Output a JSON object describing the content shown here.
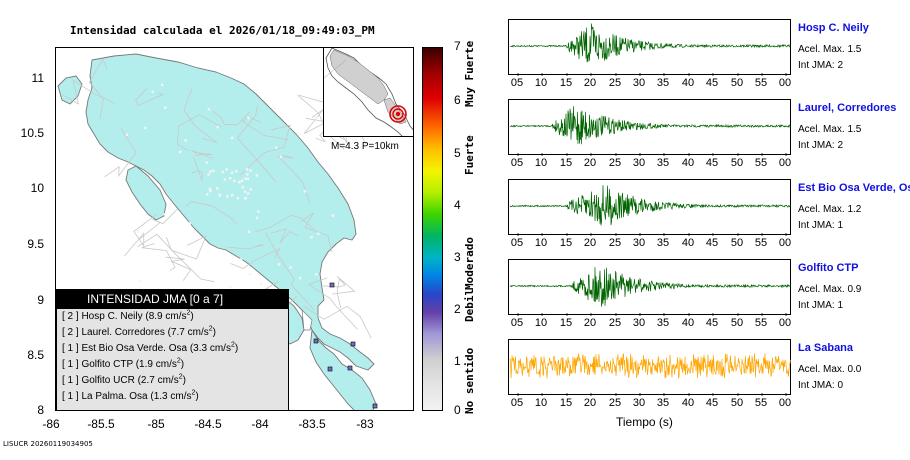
{
  "map": {
    "title": "Intensidad calculada el 2026/01/18_09:49:03_PM",
    "yticks": [
      "11",
      "10.5",
      "10",
      "9.5",
      "9",
      "8.5",
      "8"
    ],
    "xticks": [
      "-86",
      "-85.5",
      "-85",
      "-84.5",
      "-84",
      "-83.5",
      "-83"
    ],
    "magnitude_label": "M=4.3 P=10km",
    "colors": {
      "land": "#b4eeec",
      "coast": "#777777",
      "roads": "#c8c8c8",
      "ocean": "#ffffff"
    }
  },
  "legend": {
    "title": "INTENSIDAD JMA [0 a 7]",
    "rows": [
      {
        "code": "[ 2 ]",
        "text": "Hosp C. Neily (8.9 cm/s",
        "sup": "2",
        "close": ")"
      },
      {
        "code": "[ 2 ]",
        "text": "Laurel. Corredores (7.7 cm/s",
        "sup": "2",
        "close": ")"
      },
      {
        "code": "[ 1 ]",
        "text": "Est Bio Osa Verde. Osa (3.3 cm/s",
        "sup": "2",
        "close": ")"
      },
      {
        "code": "[ 1 ]",
        "text": "Golfito CTP (1.9 cm/s",
        "sup": "2",
        "close": ")"
      },
      {
        "code": "[ 1 ]",
        "text": "Golfito UCR (2.7 cm/s",
        "sup": "2",
        "close": ")"
      },
      {
        "code": "[ 1 ]",
        "text": "La Palma. Osa (1.3 cm/s",
        "sup": "2",
        "close": ")"
      }
    ]
  },
  "colorbar": {
    "ticks": [
      "7",
      "6",
      "5",
      "4",
      "3",
      "2",
      "1",
      "0"
    ],
    "labels": [
      "Muy Fuerte",
      "Fuerte",
      "Moderado",
      "Debil",
      "No sentido"
    ]
  },
  "footer": "LISUCR 20260119034905",
  "traces": {
    "time_ticks": [
      "05",
      "10",
      "15",
      "20",
      "25",
      "30",
      "35",
      "40",
      "45",
      "50",
      "55",
      "00"
    ],
    "xlabel": "Tiempo (s)",
    "stations": [
      {
        "name": "Hosp C. Neily",
        "acel": "Acel. Max. 1.5",
        "int": "Int JMA: 2",
        "color": "#006400",
        "onset_s": 15,
        "peak_s": 20,
        "amp": 0.95
      },
      {
        "name": "Laurel, Corredores",
        "acel": "Acel. Max. 1.5",
        "int": "Int JMA: 2",
        "color": "#006400",
        "onset_s": 12,
        "peak_s": 17,
        "amp": 0.95
      },
      {
        "name": "Est Bio Osa Verde, Osa",
        "acel": "Acel. Max. 1.2",
        "int": "Int JMA: 1",
        "color": "#006400",
        "onset_s": 15,
        "peak_s": 23,
        "amp": 0.95
      },
      {
        "name": "Golfito CTP",
        "acel": "Acel. Max. 0.9",
        "int": "Int JMA: 1",
        "color": "#006400",
        "onset_s": 16,
        "peak_s": 22,
        "amp": 0.95
      },
      {
        "name": "La Sabana",
        "acel": "Acel. Max. 0.0",
        "int": "Int JMA: 0",
        "color": "#ffa500",
        "onset_s": 0,
        "peak_s": 0,
        "amp": 0.55
      }
    ]
  }
}
